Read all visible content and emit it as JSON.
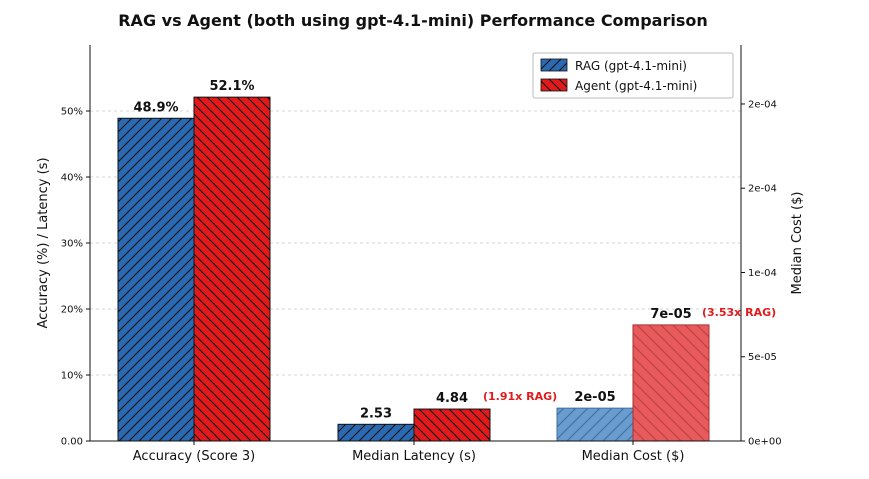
{
  "chart_data": {
    "type": "bar",
    "title": "RAG vs Agent (both using gpt-4.1-mini) Performance Comparison",
    "ylabel_left": "Accuracy (%) / Latency (s)",
    "ylabel_right": "Median Cost ($)",
    "categories": [
      "Accuracy (Score 3)",
      "Median Latency (s)",
      "Median Cost ($)"
    ],
    "left_axis": {
      "ylim": [
        0,
        60
      ],
      "ticks": [
        0,
        10,
        20,
        30,
        40,
        50
      ],
      "tick_labels": [
        "0.00",
        "10%",
        "20%",
        "30%",
        "40%",
        "50%"
      ]
    },
    "right_axis": {
      "ylim": [
        0,
        0.000235
      ],
      "ticks": [
        0,
        5e-05,
        0.0001,
        0.00015,
        0.0002
      ],
      "tick_labels": [
        "0e+00",
        "5e-05",
        "1e-04",
        "2e-04",
        "2e-04"
      ]
    },
    "series": [
      {
        "name": "RAG (gpt-4.1-mini)",
        "color": "#1f5fa8",
        "values": [
          48.9,
          2.53,
          1.95e-05
        ],
        "axes": [
          "left",
          "left",
          "right"
        ],
        "labels": [
          "48.9%",
          "2.53",
          "2e-05"
        ]
      },
      {
        "name": "Agent (gpt-4.1-mini)",
        "color": "#e31a1c",
        "values": [
          52.1,
          4.84,
          6.89e-05
        ],
        "axes": [
          "left",
          "left",
          "right"
        ],
        "labels": [
          "52.1%",
          "4.84",
          "7e-05"
        ]
      }
    ],
    "annotations": [
      {
        "category": 1,
        "text": "(1.91x RAG)"
      },
      {
        "category": 2,
        "text": "(3.53x RAG)"
      }
    ],
    "grid": true,
    "legend_position": "top-right"
  }
}
